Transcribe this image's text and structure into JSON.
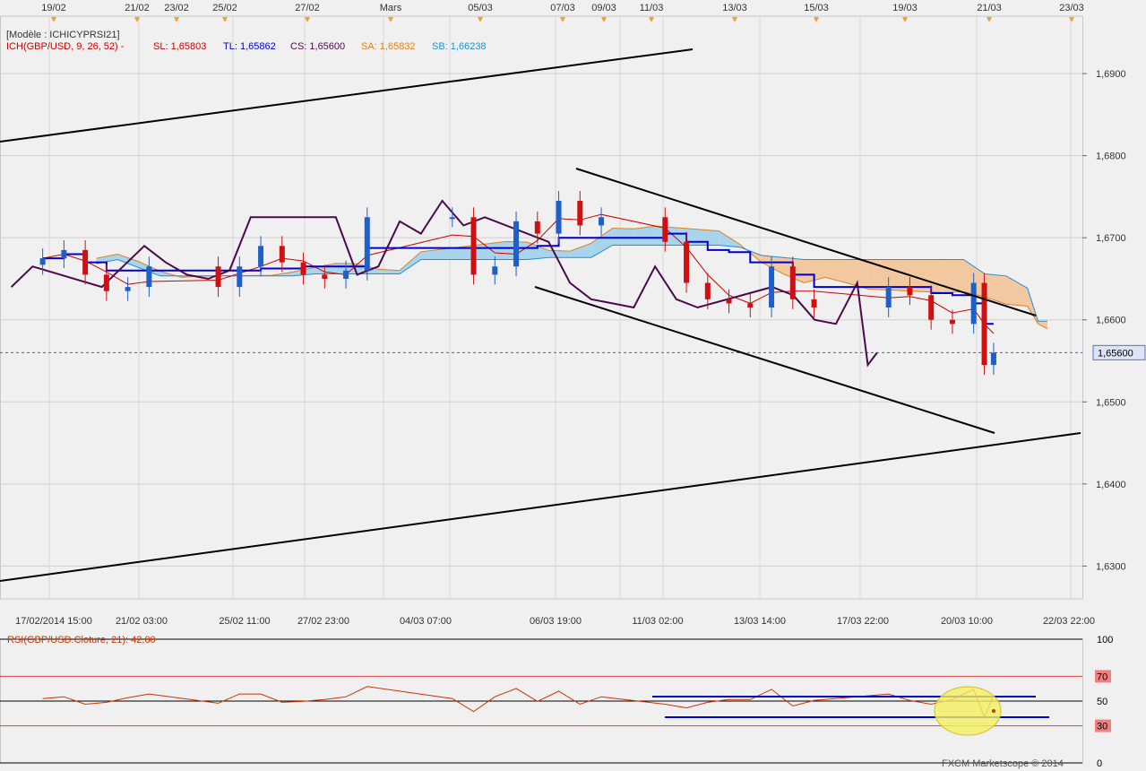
{
  "top_dates": [
    "19/02",
    "21/02",
    "23/02",
    "25/02",
    "27/02",
    "Mars",
    "05/03",
    "07/03",
    "09/03",
    "11/03",
    "13/03",
    "15/03",
    "19/03",
    "21/03",
    "23/03"
  ],
  "legend": {
    "model": "[Modèle : ICHICYPRSI21]",
    "ich": "ICH(GBP/USD, 9, 26, 52) -",
    "sl": "SL: 1,65803",
    "tl": "TL: 1,65862",
    "cs": "CS: 1,65600",
    "sa": "SA: 1,65832",
    "sb": "SB: 1,66238"
  },
  "price_axis": {
    "ticks": [
      "1,6900",
      "1,6800",
      "1,6700",
      "1,6600",
      "1,6500",
      "1,6400",
      "1,6300"
    ],
    "tick_values": [
      1.69,
      1.68,
      1.67,
      1.66,
      1.65,
      1.64,
      1.63
    ],
    "current_label": "1,65600",
    "current_value": 1.656
  },
  "time_axis": [
    "17/02/2014 15:00",
    "21/02 03:00",
    "25/02 11:00",
    "27/02 23:00",
    "04/03 07:00",
    "06/03 19:00",
    "11/03 02:00",
    "13/03 14:00",
    "17/03 22:00",
    "20/03 10:00",
    "22/03 22:00"
  ],
  "rsi": {
    "label": "RSI(GBP/USD.Cloture, 21): 42,00",
    "value": 42.0,
    "levels": [
      "100",
      "70",
      "50",
      "30",
      "0"
    ],
    "level_values": [
      100,
      70,
      50,
      30,
      0
    ]
  },
  "copyright": "FXCM Marketscope © 2014",
  "colors": {
    "background": "#f0f0f0",
    "bull_candle": "#1f5fc8",
    "bear_candle": "#d01010",
    "kijun": "#0000cc",
    "tenkan": "#cc0000",
    "chikou": "#4a0a4a",
    "cloud_bull": "#a8d4ee",
    "cloud_bear": "#f2c8a0",
    "rsi_line": "#cc3300"
  },
  "chart_data": {
    "type": "line",
    "instrument": "GBP/USD",
    "title": "ICH(GBP/USD, 9, 26, 52)",
    "ylim": [
      1.626,
      1.697
    ],
    "x_start": "17/02/2014 15:00",
    "x_end": "22/03/2014 22:00",
    "series": [
      {
        "name": "GBP/USD",
        "points": [
          [
            "18/02/2014 15:00",
            1.6675
          ],
          [
            "19/02/2014 07:00",
            1.6685
          ],
          [
            "19/02/2014 23:00",
            1.6655
          ],
          [
            "20/02/2014 15:00",
            1.6635
          ],
          [
            "21/02/2014 07:00",
            1.664
          ],
          [
            "21/02/2014 23:00",
            1.6665
          ],
          [
            "24/02/2014 03:00",
            1.664
          ],
          [
            "24/02/2014 19:00",
            1.6665
          ],
          [
            "25/02/2014 11:00",
            1.669
          ],
          [
            "26/02/2014 03:00",
            1.667
          ],
          [
            "26/02/2014 19:00",
            1.6655
          ],
          [
            "27/02/2014 11:00",
            1.665
          ],
          [
            "28/02/2014 03:00",
            1.666
          ],
          [
            "28/02/2014 19:00",
            1.6725
          ],
          [
            "03/03/2014 11:00",
            1.6725
          ],
          [
            "04/03/2014 03:00",
            1.6655
          ],
          [
            "04/03/2014 19:00",
            1.6665
          ],
          [
            "05/03/2014 11:00",
            1.672
          ],
          [
            "06/03/2014 03:00",
            1.6705
          ],
          [
            "06/03/2014 19:00",
            1.6745
          ],
          [
            "07/03/2014 11:00",
            1.6715
          ],
          [
            "08/03/2014 03:00",
            1.6725
          ],
          [
            "10/03/2014 03:00",
            1.6695
          ],
          [
            "10/03/2014 19:00",
            1.6645
          ],
          [
            "11/03/2014 11:00",
            1.6625
          ],
          [
            "12/03/2014 03:00",
            1.662
          ],
          [
            "12/03/2014 19:00",
            1.6615
          ],
          [
            "13/03/2014 11:00",
            1.6665
          ],
          [
            "14/03/2014 03:00",
            1.6625
          ],
          [
            "14/03/2014 19:00",
            1.6615
          ],
          [
            "17/03/2014 03:00",
            1.664
          ],
          [
            "17/03/2014 19:00",
            1.663
          ],
          [
            "18/03/2014 11:00",
            1.66
          ],
          [
            "19/03/2014 03:00",
            1.6595
          ],
          [
            "19/03/2014 19:00",
            1.6645
          ],
          [
            "20/03/2014 03:00",
            1.6545
          ],
          [
            "20/03/2014 10:00",
            1.656
          ]
        ]
      }
    ],
    "rsi_series": {
      "name": "RSI(GBP/USD.Cloture, 21)",
      "last": 42.0
    }
  }
}
